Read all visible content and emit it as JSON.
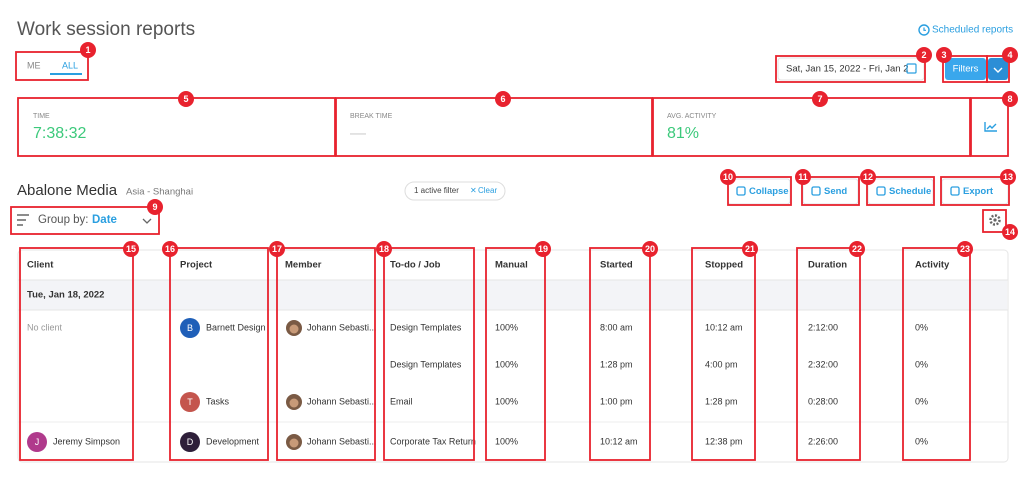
{
  "header": {
    "title": "Work session reports",
    "scheduled_reports": "Scheduled reports",
    "toggle": [
      "ME",
      "ALL"
    ],
    "date_range": "Sat, Jan 15, 2022 - Fri, Jan 2",
    "filters": "Filters"
  },
  "stats": [
    {
      "label": "TIME",
      "value": "7:38:32"
    },
    {
      "label": "BREAK TIME",
      "value": "—"
    },
    {
      "label": "AVG. ACTIVITY",
      "value": "81%"
    }
  ],
  "report": {
    "organization": "Abalone Media",
    "timezone": "Asia - Shanghai",
    "active_filter": "1 active filter",
    "clear": "Clear",
    "actions": [
      "Collapse",
      "Send",
      "Schedule",
      "Export"
    ],
    "group_by_label": "Group by:",
    "group_by_value": "Date"
  },
  "table": {
    "columns": [
      "Client",
      "Project",
      "Member",
      "To-do / Job",
      "Manual",
      "Started",
      "Stopped",
      "Duration",
      "Activity"
    ],
    "group": "Tue, Jan 18, 2022",
    "rows": [
      [
        "No client",
        {
          "avatar": "B",
          "text": "Barnett Design"
        },
        "Johann Sebasti...",
        "Design Templates",
        "100%",
        "8:00 am",
        "10:12 am",
        "2:12:00",
        "0%"
      ],
      [
        null,
        null,
        null,
        "Design Templates",
        "100%",
        "1:28 pm",
        "4:00 pm",
        "2:32:00",
        "0%"
      ],
      [
        null,
        {
          "avatar": "T",
          "text": "Tasks"
        },
        "Johann Sebasti...",
        "Email",
        "100%",
        "1:00 pm",
        "1:28 pm",
        "0:28:00",
        "0%"
      ],
      [
        {
          "avatar": "J",
          "text": "Jeremy Simpson"
        },
        {
          "avatar": "D",
          "text": "Development"
        },
        "Johann Sebasti...",
        "Corporate Tax Return",
        "100%",
        "10:12 am",
        "12:38 pm",
        "2:26:00",
        "0%"
      ]
    ]
  },
  "annotations": [
    1,
    2,
    3,
    4,
    5,
    6,
    7,
    8,
    9,
    10,
    11,
    12,
    13,
    14,
    15,
    16,
    17,
    18,
    19,
    20,
    21,
    22,
    23
  ]
}
